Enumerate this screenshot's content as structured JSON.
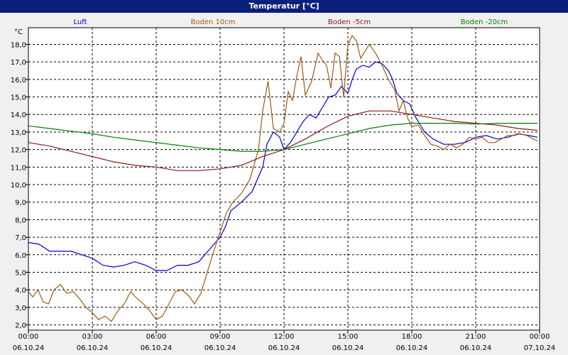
{
  "window": {
    "title": "Temperatur [°C]"
  },
  "chart_data": {
    "type": "line",
    "title": "Temperatur [°C]",
    "ylabel": "°C",
    "xlabel": "",
    "ylim": [
      1.7,
      18.95
    ],
    "xlim": [
      0,
      24
    ],
    "grid": true,
    "legend_position": "top",
    "y_ticks": [
      "2,0",
      "3,0",
      "4,0",
      "5,0",
      "6,0",
      "7,0",
      "8,0",
      "9,0",
      "10,0",
      "11,0",
      "12,0",
      "13,0",
      "14,0",
      "15,0",
      "16,0",
      "17,0",
      "18,0"
    ],
    "x_ticks": [
      {
        "time": "00:00",
        "date": "06.10.24"
      },
      {
        "time": "03:00",
        "date": "06.10.24"
      },
      {
        "time": "06:00",
        "date": "06.10.24"
      },
      {
        "time": "09:00",
        "date": "06.10.24"
      },
      {
        "time": "12:00",
        "date": "06.10.24"
      },
      {
        "time": "15:00",
        "date": "06.10.24"
      },
      {
        "time": "18:00",
        "date": "06.10.24"
      },
      {
        "time": "21:00",
        "date": "06.10.24"
      },
      {
        "time": "00:00",
        "date": "07.10.24"
      }
    ],
    "series": [
      {
        "name": "Luft",
        "color": "#0000cc",
        "points": [
          [
            0,
            6.7
          ],
          [
            0.5,
            6.6
          ],
          [
            1,
            6.2
          ],
          [
            1.5,
            6.2
          ],
          [
            2,
            6.2
          ],
          [
            2.5,
            6.0
          ],
          [
            3,
            5.8
          ],
          [
            3.5,
            5.4
          ],
          [
            4,
            5.3
          ],
          [
            4.5,
            5.4
          ],
          [
            5,
            5.6
          ],
          [
            5.5,
            5.4
          ],
          [
            6,
            5.1
          ],
          [
            6.5,
            5.1
          ],
          [
            7,
            5.4
          ],
          [
            7.5,
            5.4
          ],
          [
            8,
            5.6
          ],
          [
            8.5,
            6.3
          ],
          [
            9,
            7.0
          ],
          [
            9.25,
            7.6
          ],
          [
            9.5,
            8.5
          ],
          [
            10,
            9.0
          ],
          [
            10.5,
            9.6
          ],
          [
            11,
            11.0
          ],
          [
            11.2,
            12.3
          ],
          [
            11.5,
            13.0
          ],
          [
            11.8,
            12.7
          ],
          [
            12,
            12.0
          ],
          [
            12.3,
            12.4
          ],
          [
            12.6,
            13.0
          ],
          [
            12.9,
            13.6
          ],
          [
            13.2,
            14.0
          ],
          [
            13.5,
            13.8
          ],
          [
            13.8,
            14.4
          ],
          [
            14.1,
            15.0
          ],
          [
            14.4,
            15.1
          ],
          [
            14.7,
            15.6
          ],
          [
            15,
            15.2
          ],
          [
            15.2,
            16.0
          ],
          [
            15.4,
            16.6
          ],
          [
            15.7,
            16.8
          ],
          [
            16,
            16.7
          ],
          [
            16.3,
            17.0
          ],
          [
            16.6,
            16.9
          ],
          [
            16.9,
            16.5
          ],
          [
            17.1,
            16.0
          ],
          [
            17.3,
            15.2
          ],
          [
            17.6,
            14.8
          ],
          [
            17.9,
            14.6
          ],
          [
            18.2,
            13.8
          ],
          [
            18.6,
            13.0
          ],
          [
            19,
            12.6
          ],
          [
            19.5,
            12.3
          ],
          [
            20,
            12.3
          ],
          [
            20.5,
            12.4
          ],
          [
            21,
            12.7
          ],
          [
            21.5,
            12.8
          ],
          [
            22,
            12.6
          ],
          [
            22.5,
            12.7
          ],
          [
            23,
            12.9
          ],
          [
            23.5,
            12.8
          ],
          [
            23.9,
            12.7
          ]
        ]
      },
      {
        "name": "Boden 10cm",
        "color": "#a05a14",
        "points": [
          [
            0,
            3.9
          ],
          [
            0.2,
            3.6
          ],
          [
            0.45,
            4.0
          ],
          [
            0.7,
            3.3
          ],
          [
            0.95,
            3.2
          ],
          [
            1.2,
            4.0
          ],
          [
            1.5,
            4.3
          ],
          [
            1.8,
            3.8
          ],
          [
            2.1,
            3.9
          ],
          [
            2.4,
            3.5
          ],
          [
            2.7,
            3.0
          ],
          [
            3,
            2.7
          ],
          [
            3.3,
            2.3
          ],
          [
            3.6,
            2.5
          ],
          [
            3.9,
            2.2
          ],
          [
            4.2,
            2.8
          ],
          [
            4.5,
            3.2
          ],
          [
            4.8,
            3.9
          ],
          [
            5.1,
            3.5
          ],
          [
            5.4,
            3.2
          ],
          [
            5.7,
            2.8
          ],
          [
            6,
            2.3
          ],
          [
            6.3,
            2.5
          ],
          [
            6.6,
            3.2
          ],
          [
            6.9,
            3.9
          ],
          [
            7.2,
            4.0
          ],
          [
            7.5,
            3.7
          ],
          [
            7.8,
            3.2
          ],
          [
            8.1,
            3.8
          ],
          [
            8.4,
            5.0
          ],
          [
            8.7,
            6.2
          ],
          [
            9,
            7.3
          ],
          [
            9.3,
            8.4
          ],
          [
            9.6,
            9.0
          ],
          [
            10,
            9.5
          ],
          [
            10.4,
            10.3
          ],
          [
            10.8,
            12.0
          ],
          [
            11,
            14.2
          ],
          [
            11.25,
            15.9
          ],
          [
            11.5,
            13.2
          ],
          [
            11.8,
            13.0
          ],
          [
            12,
            13.5
          ],
          [
            12.2,
            15.3
          ],
          [
            12.4,
            14.8
          ],
          [
            12.6,
            16.2
          ],
          [
            12.8,
            17.3
          ],
          [
            13,
            15.1
          ],
          [
            13.3,
            15.9
          ],
          [
            13.6,
            17.5
          ],
          [
            13.8,
            17.1
          ],
          [
            14,
            16.8
          ],
          [
            14.2,
            15.5
          ],
          [
            14.4,
            17.5
          ],
          [
            14.6,
            17.3
          ],
          [
            14.8,
            15.0
          ],
          [
            15,
            18.0
          ],
          [
            15.2,
            18.5
          ],
          [
            15.4,
            18.2
          ],
          [
            15.6,
            17.2
          ],
          [
            15.8,
            17.6
          ],
          [
            16,
            18.0
          ],
          [
            16.3,
            17.5
          ],
          [
            16.6,
            16.8
          ],
          [
            16.9,
            16.0
          ],
          [
            17.2,
            15.4
          ],
          [
            17.4,
            14.2
          ],
          [
            17.6,
            14.8
          ],
          [
            17.8,
            13.8
          ],
          [
            18,
            13.3
          ],
          [
            18.3,
            13.4
          ],
          [
            18.6,
            12.8
          ],
          [
            18.9,
            12.3
          ],
          [
            19.2,
            12.2
          ],
          [
            19.5,
            12.0
          ],
          [
            19.8,
            12.3
          ],
          [
            20.1,
            12.1
          ],
          [
            20.4,
            12.3
          ],
          [
            20.7,
            12.7
          ],
          [
            21,
            12.6
          ],
          [
            21.3,
            12.7
          ],
          [
            21.6,
            12.4
          ],
          [
            21.9,
            12.4
          ],
          [
            22.2,
            12.6
          ],
          [
            22.5,
            12.8
          ],
          [
            22.8,
            12.8
          ],
          [
            23.1,
            12.9
          ],
          [
            23.4,
            12.8
          ],
          [
            23.7,
            12.6
          ],
          [
            23.9,
            12.5
          ]
        ]
      },
      {
        "name": "Boden -5cm",
        "color": "#8b1a1a",
        "points": [
          [
            0,
            12.4
          ],
          [
            1,
            12.2
          ],
          [
            2,
            11.9
          ],
          [
            3,
            11.6
          ],
          [
            4,
            11.3
          ],
          [
            5,
            11.1
          ],
          [
            6,
            11.0
          ],
          [
            7,
            10.8
          ],
          [
            8,
            10.8
          ],
          [
            9,
            10.9
          ],
          [
            10,
            11.1
          ],
          [
            11,
            11.6
          ],
          [
            12,
            12.0
          ],
          [
            13,
            12.6
          ],
          [
            14,
            13.3
          ],
          [
            14.5,
            13.6
          ],
          [
            15,
            13.9
          ],
          [
            16,
            14.2
          ],
          [
            17,
            14.2
          ],
          [
            18,
            14.0
          ],
          [
            19,
            13.8
          ],
          [
            20,
            13.6
          ],
          [
            21,
            13.5
          ],
          [
            22,
            13.4
          ],
          [
            23,
            13.2
          ],
          [
            23.9,
            13.1
          ]
        ]
      },
      {
        "name": "Boden -20cm",
        "color": "#008000",
        "points": [
          [
            0,
            13.35
          ],
          [
            1,
            13.2
          ],
          [
            2,
            13.05
          ],
          [
            3,
            12.9
          ],
          [
            4,
            12.7
          ],
          [
            5,
            12.55
          ],
          [
            6,
            12.4
          ],
          [
            7,
            12.25
          ],
          [
            8,
            12.1
          ],
          [
            9,
            12.0
          ],
          [
            10,
            11.9
          ],
          [
            11,
            11.9
          ],
          [
            12,
            12.0
          ],
          [
            13,
            12.3
          ],
          [
            14,
            12.6
          ],
          [
            15,
            12.9
          ],
          [
            16,
            13.2
          ],
          [
            17,
            13.4
          ],
          [
            18,
            13.5
          ],
          [
            19,
            13.5
          ],
          [
            20,
            13.5
          ],
          [
            21,
            13.45
          ],
          [
            22,
            13.5
          ],
          [
            23,
            13.5
          ],
          [
            23.9,
            13.5
          ]
        ]
      }
    ]
  }
}
